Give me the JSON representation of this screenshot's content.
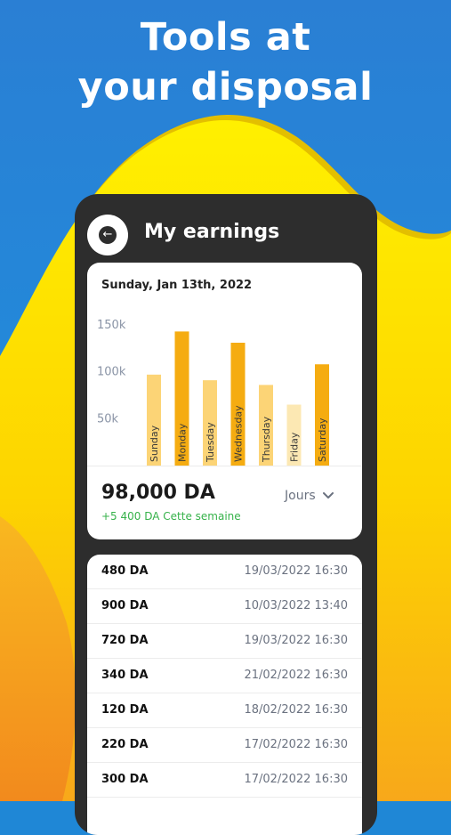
{
  "headline": {
    "line1": "Tools at",
    "line2": "your disposal"
  },
  "header": {
    "title": "My earnings",
    "back_icon": "arrow-left-icon"
  },
  "summary": {
    "date": "Sunday, Jan 13th, 2022",
    "total": "98,000 DA",
    "week_change": "+5 400 DA Cette semaine",
    "period_select": "Jours"
  },
  "chart_data": {
    "type": "bar",
    "categories": [
      "Sunday",
      "Monday",
      "Tuesday",
      "Wednesday",
      "Thursday",
      "Friday",
      "Saturday"
    ],
    "values": [
      97000,
      143000,
      91000,
      131000,
      86000,
      65000,
      108000
    ],
    "ytick_labels": [
      "150k",
      "100k",
      "50k"
    ],
    "ylim": [
      0,
      150000
    ],
    "colors": [
      "#fcd476",
      "#f5ac11",
      "#fcd476",
      "#f5ac11",
      "#fcd476",
      "#fce8b3",
      "#f5ac11"
    ]
  },
  "transactions": [
    {
      "amount": "480 DA",
      "date": "19/03/2022 16:30"
    },
    {
      "amount": "900 DA",
      "date": "10/03/2022 13:40"
    },
    {
      "amount": "720 DA",
      "date": "19/03/2022 16:30"
    },
    {
      "amount": "340 DA",
      "date": "21/02/2022 16:30"
    },
    {
      "amount": "120 DA",
      "date": "18/02/2022 16:30"
    },
    {
      "amount": "220 DA",
      "date": "17/02/2022 16:30"
    },
    {
      "amount": "300 DA",
      "date": "17/02/2022 16:30"
    }
  ],
  "colors": {
    "bg_blue": "#1f87d6",
    "bg_yellow": "#fde500",
    "bg_orange": "#f7a21b",
    "phone_dark": "#2d2d2d",
    "positive_green": "#36b24a"
  }
}
